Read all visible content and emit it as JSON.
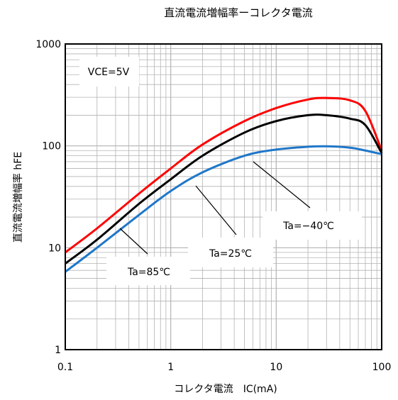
{
  "chart_data": {
    "type": "line",
    "title": "直流電流増幅率ーコレクタ電流",
    "xlabel": "コレクタ電流　IC(mA)",
    "ylabel": "直流電流増幅率 hFE",
    "x_scale": "log",
    "y_scale": "log",
    "xlim": [
      0.1,
      100
    ],
    "ylim": [
      1,
      1000
    ],
    "x_ticks": [
      "0.1",
      "1",
      "10",
      "100"
    ],
    "y_ticks": [
      "1",
      "10",
      "100",
      "1000"
    ],
    "grid": true,
    "annotation": "VCE=5V",
    "series": [
      {
        "name": "Ta=85℃",
        "color": "#ff0000",
        "x": [
          0.1,
          0.2,
          0.5,
          1,
          2,
          5,
          10,
          20,
          30,
          50,
          70,
          100
        ],
        "y": [
          9,
          15.5,
          34,
          60,
          103,
          175,
          235,
          285,
          295,
          280,
          220,
          90
        ]
      },
      {
        "name": "Ta=25℃",
        "color": "#000000",
        "x": [
          0.1,
          0.2,
          0.5,
          1,
          2,
          5,
          10,
          20,
          30,
          50,
          70,
          100
        ],
        "y": [
          7,
          12,
          27,
          47,
          80,
          135,
          175,
          200,
          200,
          185,
          160,
          85
        ]
      },
      {
        "name": "Ta=-40℃",
        "color": "#1f77c9",
        "x": [
          0.1,
          0.2,
          0.5,
          1,
          2,
          5,
          10,
          20,
          30,
          50,
          70,
          100
        ],
        "y": [
          5.8,
          10,
          21,
          36,
          55,
          80,
          92,
          98,
          99,
          96,
          90,
          83
        ]
      }
    ],
    "labels": [
      {
        "text": "Ta=−40℃",
        "series": "Ta=-40℃"
      },
      {
        "text": "Ta=25℃",
        "series": "Ta=25℃"
      },
      {
        "text": "Ta=85℃",
        "series": "Ta=85℃"
      }
    ]
  }
}
